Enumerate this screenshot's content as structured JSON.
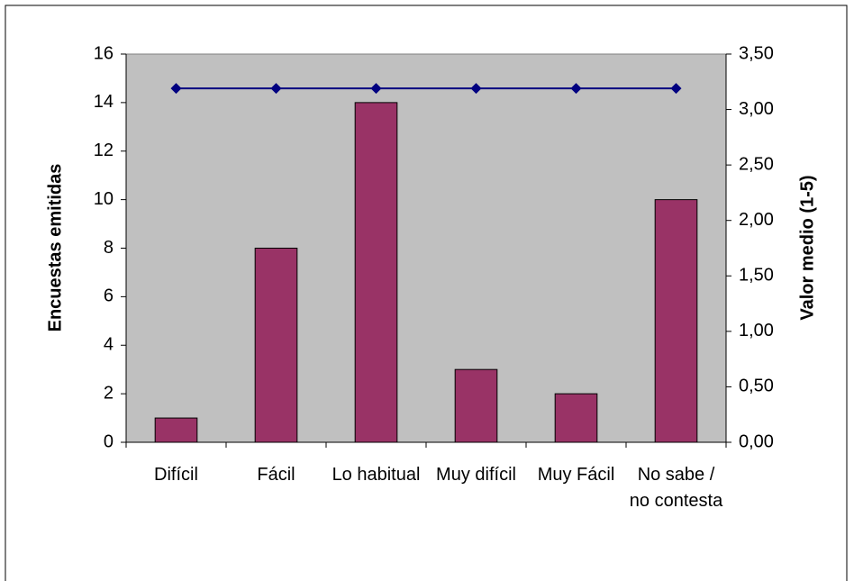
{
  "chart_data": {
    "type": "bar",
    "categories": [
      "Difícil",
      "Fácil",
      "Lo habitual",
      "Muy difícil",
      "Muy Fácil",
      "No sabe / no contesta"
    ],
    "series": [
      {
        "type": "bar",
        "color": "#993366",
        "values": [
          1,
          8,
          14,
          3,
          2,
          10
        ]
      },
      {
        "type": "line",
        "axis": "y2",
        "color": "#000080",
        "values": [
          3.19,
          3.19,
          3.19,
          3.19,
          3.19,
          3.19
        ]
      }
    ],
    "ylabel": "Encuestas emitidas",
    "y2label": "Valor medio (1-5)",
    "ylim": [
      0,
      16
    ],
    "yticks": [
      0,
      2,
      4,
      6,
      8,
      10,
      12,
      14,
      16
    ],
    "y2lim": [
      0,
      3.5
    ],
    "y2ticks": [
      {
        "value": 0,
        "label": "0,00"
      },
      {
        "value": 0.5,
        "label": "0,50"
      },
      {
        "value": 1,
        "label": "1,00"
      },
      {
        "value": 1.5,
        "label": "1,50"
      },
      {
        "value": 2,
        "label": "2,00"
      },
      {
        "value": 2.5,
        "label": "2,50"
      },
      {
        "value": 3,
        "label": "3,00"
      },
      {
        "value": 3.5,
        "label": "3,50"
      }
    ],
    "plot_background": "#c0c0c0"
  }
}
